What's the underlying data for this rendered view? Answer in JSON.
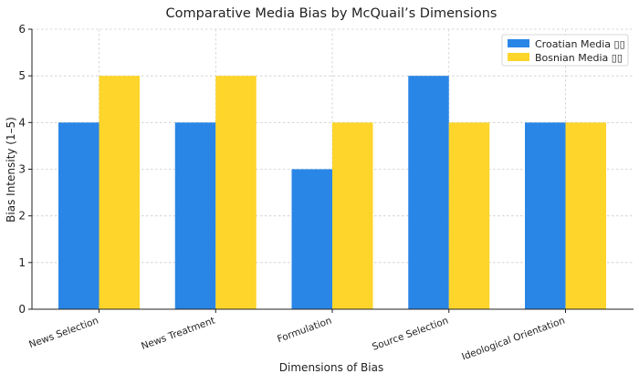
{
  "chart_data": {
    "type": "bar",
    "title": "Comparative Media Bias by McQuail’s Dimensions",
    "xlabel": "Dimensions of Bias",
    "ylabel": "Bias Intensity (1–5)",
    "categories": [
      "News Selection",
      "News Treatment",
      "Formulation",
      "Source Selection",
      "Ideological Orientation"
    ],
    "series": [
      {
        "name": "Croatian Media ▯▯",
        "color": "#2a86e6",
        "values": [
          4,
          4,
          3,
          5,
          4
        ]
      },
      {
        "name": "Bosnian Media ▯▯",
        "color": "#fdd52b",
        "values": [
          5,
          5,
          4,
          4,
          4
        ]
      }
    ],
    "ylim": [
      0,
      6
    ],
    "yticks": [
      0,
      1,
      2,
      3,
      4,
      5,
      6
    ],
    "grid": true,
    "legend_position": "top-right"
  }
}
